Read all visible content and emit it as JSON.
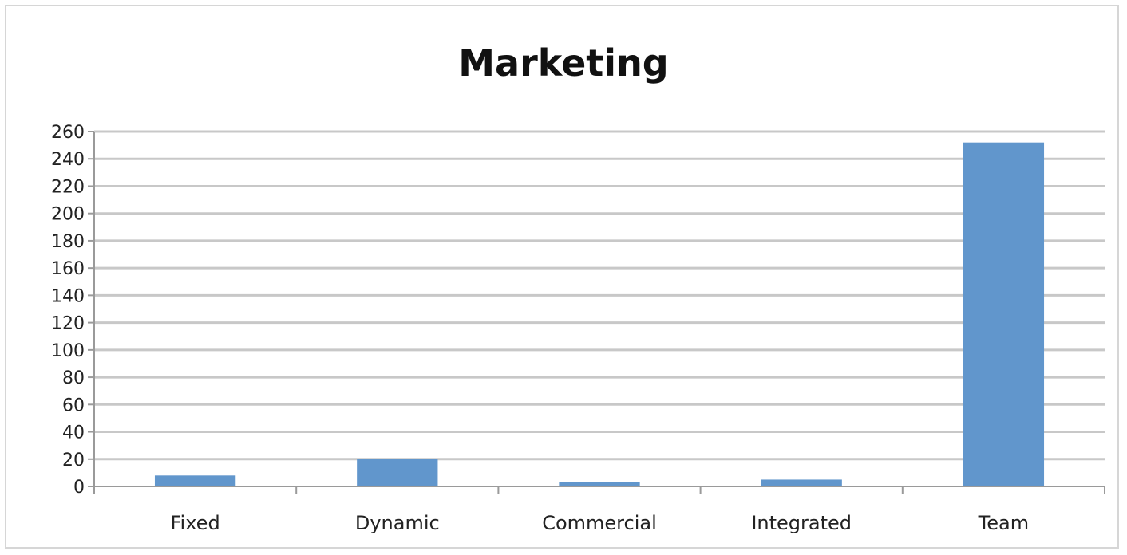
{
  "chart_data": {
    "type": "bar",
    "title": "Marketing",
    "categories": [
      "Fixed",
      "Dynamic",
      "Commercial",
      "Integrated",
      "Team"
    ],
    "values": [
      8,
      20,
      3,
      5,
      252
    ],
    "ylim": [
      0,
      260
    ],
    "yticks": [
      "0",
      "20",
      "40",
      "60",
      "80",
      "100",
      "120",
      "140",
      "160",
      "180",
      "200",
      "220",
      "240",
      "260"
    ],
    "grid": true,
    "bar_color": "#6196cc",
    "grid_color": "#c8c8c8"
  }
}
